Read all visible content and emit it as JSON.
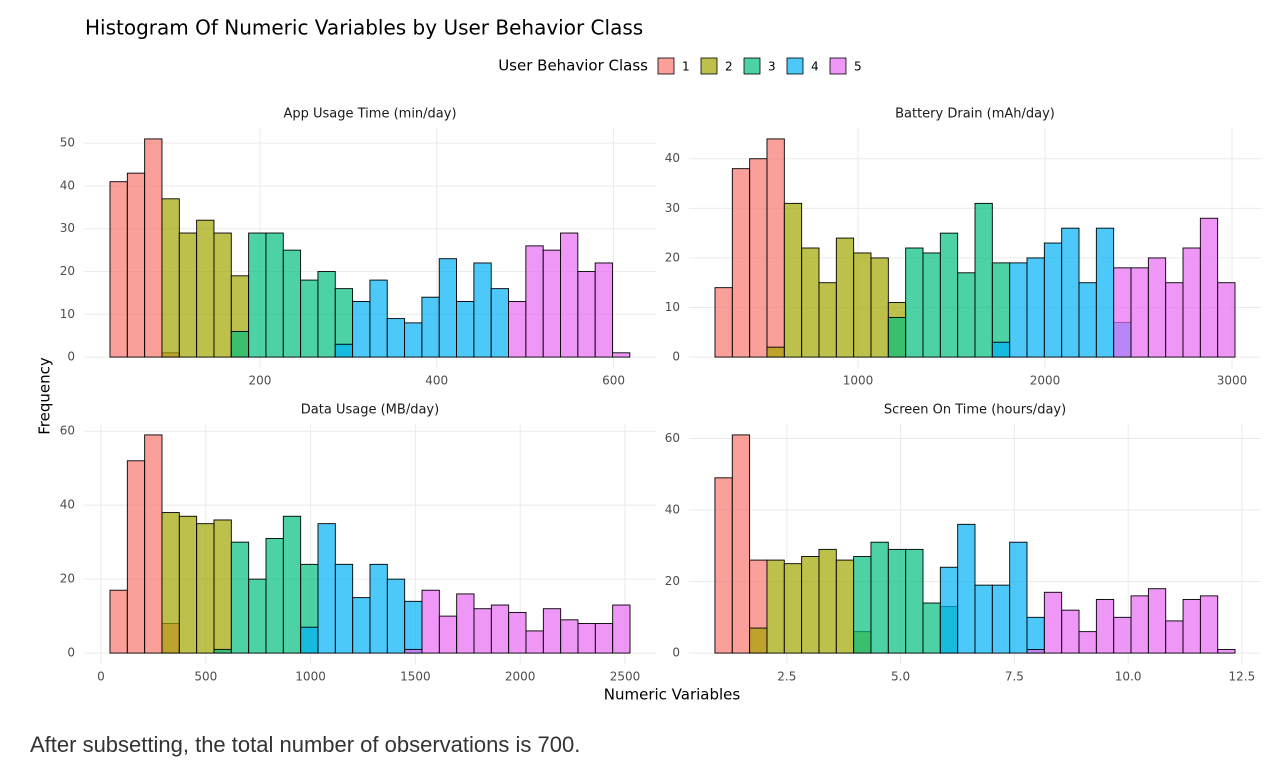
{
  "figure": {
    "title": "Histogram Of Numeric Variables by User Behavior Class",
    "legend_title": "User Behavior Class",
    "x_label": "Numeric Variables",
    "y_label": "Frequency"
  },
  "chart_data": [
    {
      "type": "histogram",
      "title": "App Usage Time (min/day)",
      "bins": [
        30.4,
        50,
        69.6,
        89.2,
        108.8,
        128.4,
        148,
        167.6,
        187.2,
        206.8,
        226.4,
        246,
        265.6,
        285.2,
        304.8,
        324.4,
        344,
        363.6,
        383.2,
        402.8,
        422.4,
        442,
        461.6,
        481.2,
        500.8,
        520.4,
        540,
        559.6,
        579.2,
        598.8,
        618.4
      ],
      "series": [
        {
          "name": "1",
          "color": "#F8766D",
          "values": [
            41,
            43,
            51,
            1,
            null,
            null,
            null,
            null,
            null,
            null,
            null,
            null,
            null,
            null,
            null,
            null,
            null,
            null,
            null,
            null,
            null,
            null,
            null,
            null,
            null,
            null,
            null,
            null,
            null,
            null
          ]
        },
        {
          "name": "2",
          "color": "#A3A500",
          "values": [
            null,
            null,
            null,
            37,
            29,
            32,
            29,
            19,
            null,
            null,
            null,
            null,
            null,
            null,
            null,
            null,
            null,
            null,
            null,
            null,
            null,
            null,
            null,
            null,
            null,
            null,
            null,
            null,
            null,
            null
          ]
        },
        {
          "name": "3",
          "color": "#00BF7D",
          "values": [
            null,
            null,
            null,
            null,
            null,
            null,
            null,
            6,
            29,
            29,
            25,
            18,
            20,
            16,
            null,
            null,
            null,
            null,
            null,
            null,
            null,
            null,
            null,
            null,
            null,
            null,
            null,
            null,
            null,
            null
          ]
        },
        {
          "name": "4",
          "color": "#00B0F6",
          "values": [
            null,
            null,
            null,
            null,
            null,
            null,
            null,
            null,
            null,
            null,
            null,
            null,
            null,
            3,
            13,
            18,
            9,
            8,
            14,
            23,
            13,
            22,
            16,
            null,
            null,
            null,
            null,
            null,
            null,
            null
          ]
        },
        {
          "name": "5",
          "color": "#E76BF3",
          "values": [
            null,
            null,
            null,
            null,
            null,
            null,
            null,
            null,
            null,
            null,
            null,
            null,
            null,
            null,
            null,
            null,
            null,
            null,
            null,
            null,
            null,
            null,
            null,
            13,
            26,
            25,
            29,
            20,
            22,
            1
          ]
        }
      ],
      "xlim": [
        1,
        648
      ],
      "xticks": [
        200,
        400,
        600
      ],
      "ylim": [
        -2.55,
        53.55
      ],
      "yticks": [
        0,
        10,
        20,
        30,
        40,
        50
      ],
      "grid": true
    },
    {
      "type": "histogram",
      "title": "Battery Drain (mAh/day)",
      "bins": [
        235,
        327.7,
        420.4,
        513.1,
        605.8,
        698.5,
        791.2,
        883.9,
        976.6,
        1069.3,
        1162,
        1254.7,
        1347.4,
        1440.1,
        1532.8,
        1625.5,
        1718.2,
        1810.9,
        1903.6,
        1996.3,
        2089,
        2181.7,
        2274.4,
        2367.1,
        2459.8,
        2552.5,
        2645.2,
        2737.9,
        2830.6,
        2923.3,
        3016
      ],
      "series": [
        {
          "name": "1",
          "color": "#F8766D",
          "values": [
            14,
            38,
            40,
            44,
            null,
            null,
            null,
            null,
            null,
            null,
            null,
            null,
            null,
            null,
            null,
            null,
            null,
            null,
            null,
            null,
            null,
            null,
            null,
            null,
            null,
            null,
            null,
            null,
            null,
            null
          ]
        },
        {
          "name": "2",
          "color": "#A3A500",
          "values": [
            null,
            null,
            null,
            2,
            31,
            22,
            15,
            24,
            21,
            20,
            11,
            null,
            null,
            null,
            null,
            null,
            null,
            null,
            null,
            null,
            null,
            null,
            null,
            null,
            null,
            null,
            null,
            null,
            null,
            null
          ]
        },
        {
          "name": "3",
          "color": "#00BF7D",
          "values": [
            null,
            null,
            null,
            null,
            null,
            null,
            null,
            null,
            null,
            null,
            8,
            22,
            21,
            25,
            17,
            31,
            19,
            null,
            null,
            null,
            null,
            null,
            null,
            null,
            null,
            null,
            null,
            null,
            null,
            null
          ]
        },
        {
          "name": "4",
          "color": "#00B0F6",
          "values": [
            null,
            null,
            null,
            null,
            null,
            null,
            null,
            null,
            null,
            null,
            null,
            null,
            null,
            null,
            null,
            null,
            3,
            19,
            20,
            23,
            26,
            15,
            26,
            7,
            null,
            null,
            null,
            null,
            null,
            null
          ]
        },
        {
          "name": "5",
          "color": "#E76BF3",
          "values": [
            null,
            null,
            null,
            null,
            null,
            null,
            null,
            null,
            null,
            null,
            null,
            null,
            null,
            null,
            null,
            null,
            null,
            null,
            null,
            null,
            null,
            null,
            null,
            18,
            18,
            20,
            15,
            22,
            28,
            15
          ]
        }
      ],
      "xlim": [
        96,
        3155
      ],
      "xticks": [
        1000,
        2000,
        3000
      ],
      "ylim": [
        -2.2,
        46.2
      ],
      "yticks": [
        0,
        10,
        20,
        30,
        40
      ],
      "grid": true
    },
    {
      "type": "histogram",
      "title": "Data Usage (MB/day)",
      "bins": [
        43,
        125.7,
        208.4,
        291.1,
        373.8,
        456.5,
        539.2,
        621.9,
        704.6,
        787.3,
        870,
        952.7,
        1035.4,
        1118.1,
        1200.8,
        1283.5,
        1366.2,
        1448.9,
        1531.6,
        1614.3,
        1697,
        1779.7,
        1862.4,
        1945.1,
        2027.8,
        2110.5,
        2193.2,
        2275.9,
        2358.6,
        2441.3,
        2524
      ],
      "series": [
        {
          "name": "1",
          "color": "#F8766D",
          "values": [
            17,
            52,
            59,
            8,
            null,
            null,
            null,
            null,
            null,
            null,
            null,
            null,
            null,
            null,
            null,
            null,
            null,
            null,
            null,
            null,
            null,
            null,
            null,
            null,
            null,
            null,
            null,
            null,
            null,
            null
          ]
        },
        {
          "name": "2",
          "color": "#A3A500",
          "values": [
            null,
            null,
            null,
            38,
            37,
            35,
            36,
            null,
            null,
            null,
            null,
            null,
            null,
            null,
            null,
            null,
            null,
            null,
            null,
            null,
            null,
            null,
            null,
            null,
            null,
            null,
            null,
            null,
            null,
            null
          ]
        },
        {
          "name": "3",
          "color": "#00BF7D",
          "values": [
            null,
            null,
            null,
            null,
            null,
            null,
            1,
            30,
            20,
            31,
            37,
            24,
            null,
            null,
            null,
            null,
            null,
            null,
            null,
            null,
            null,
            null,
            null,
            null,
            null,
            null,
            null,
            null,
            null,
            null
          ]
        },
        {
          "name": "4",
          "color": "#00B0F6",
          "values": [
            null,
            null,
            null,
            null,
            null,
            null,
            null,
            null,
            null,
            null,
            null,
            7,
            35,
            24,
            15,
            24,
            20,
            14,
            null,
            null,
            null,
            null,
            null,
            null,
            null,
            null,
            null,
            null,
            null,
            null
          ]
        },
        {
          "name": "5",
          "color": "#E76BF3",
          "values": [
            null,
            null,
            null,
            null,
            null,
            null,
            null,
            null,
            null,
            null,
            null,
            null,
            null,
            null,
            null,
            null,
            null,
            1,
            17,
            10,
            16,
            12,
            13,
            11,
            6,
            12,
            9,
            8,
            8,
            13
          ]
        }
      ],
      "xlim": [
        -81,
        2648
      ],
      "xticks": [
        0,
        500,
        1000,
        1500,
        2000,
        2500
      ],
      "ylim": [
        -2.95,
        61.95
      ],
      "yticks": [
        0,
        20,
        40,
        60
      ],
      "grid": true
    },
    {
      "type": "histogram",
      "title": "Screen On Time (hours/day)",
      "bins": [
        0.92,
        1.301,
        1.682,
        2.063,
        2.444,
        2.825,
        3.206,
        3.587,
        3.968,
        4.349,
        4.73,
        5.111,
        5.492,
        5.873,
        6.254,
        6.635,
        7.016,
        7.397,
        7.778,
        8.159,
        8.54,
        8.921,
        9.302,
        9.683,
        10.064,
        10.445,
        10.826,
        11.207,
        11.588,
        11.969,
        12.35
      ],
      "series": [
        {
          "name": "1",
          "color": "#F8766D",
          "values": [
            49,
            61,
            26,
            null,
            null,
            null,
            null,
            null,
            null,
            null,
            null,
            null,
            null,
            null,
            null,
            null,
            null,
            null,
            null,
            null,
            null,
            null,
            null,
            null,
            null,
            null,
            null,
            null,
            null,
            null
          ]
        },
        {
          "name": "2",
          "color": "#A3A500",
          "values": [
            null,
            null,
            7,
            26,
            25,
            27,
            29,
            26,
            6,
            null,
            null,
            null,
            null,
            null,
            null,
            null,
            null,
            null,
            null,
            null,
            null,
            null,
            null,
            null,
            null,
            null,
            null,
            null,
            null,
            null
          ]
        },
        {
          "name": "3",
          "color": "#00BF7D",
          "values": [
            null,
            null,
            null,
            null,
            null,
            null,
            null,
            null,
            27,
            31,
            29,
            29,
            14,
            13,
            null,
            null,
            null,
            null,
            null,
            null,
            null,
            null,
            null,
            null,
            null,
            null,
            null,
            null,
            null,
            null
          ]
        },
        {
          "name": "4",
          "color": "#00B0F6",
          "values": [
            null,
            null,
            null,
            null,
            null,
            null,
            null,
            null,
            null,
            null,
            null,
            null,
            null,
            24,
            36,
            19,
            19,
            31,
            10,
            null,
            null,
            null,
            null,
            null,
            null,
            null,
            null,
            null,
            null,
            null
          ]
        },
        {
          "name": "5",
          "color": "#E76BF3",
          "values": [
            null,
            null,
            null,
            null,
            null,
            null,
            null,
            null,
            null,
            null,
            null,
            null,
            null,
            null,
            null,
            null,
            null,
            null,
            1,
            17,
            12,
            6,
            15,
            10,
            16,
            18,
            9,
            15,
            16,
            1
          ]
        }
      ],
      "xlim": [
        0.35,
        12.92
      ],
      "xticks": [
        2.5,
        {
          "value": 5,
          "label": "5.0"
        },
        7.5,
        {
          "value": 10,
          "label": "10.0"
        },
        12.5
      ],
      "ylim": [
        -3.05,
        64.05
      ],
      "yticks": [
        0,
        20,
        40,
        60
      ],
      "grid": true
    }
  ],
  "output_text": "After subsetting, the total number of observations is 700."
}
